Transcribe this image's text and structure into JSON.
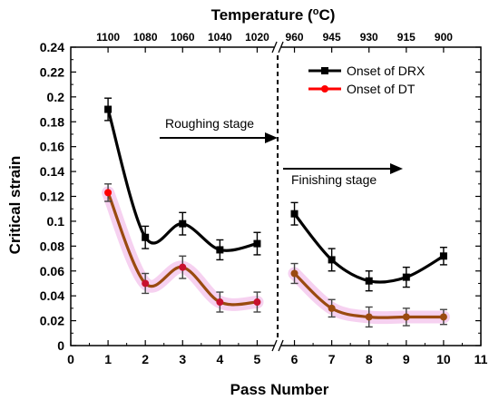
{
  "chart_data": {
    "type": "scatter",
    "xlabel": "Pass Number",
    "ylabel": "Critical strain",
    "top_axis_label": "Temperature (",
    "top_axis_label_sup": "o",
    "top_axis_label_unit": "C)",
    "xlim": [
      0,
      11
    ],
    "ylim": [
      0,
      0.24
    ],
    "x_ticks": [
      "0",
      "1",
      "2",
      "3",
      "4",
      "5",
      "6",
      "7",
      "8",
      "9",
      "10",
      "11"
    ],
    "y_ticks": [
      "0",
      "0.02",
      "0.04",
      "0.06",
      "0.08",
      "0.1",
      "0.12",
      "0.14",
      "0.16",
      "0.18",
      "0.2",
      "0.22",
      "0.24"
    ],
    "top_ticks": [
      {
        "x": 1,
        "label": "1100"
      },
      {
        "x": 2,
        "label": "1080"
      },
      {
        "x": 3,
        "label": "1060"
      },
      {
        "x": 4,
        "label": "1040"
      },
      {
        "x": 5,
        "label": "1020"
      },
      {
        "x": 6,
        "label": "960"
      },
      {
        "x": 7,
        "label": "945"
      },
      {
        "x": 8,
        "label": "930"
      },
      {
        "x": 9,
        "label": "915"
      },
      {
        "x": 10,
        "label": "900"
      }
    ],
    "series": [
      {
        "name": "Onset of DRX",
        "color": "#000000",
        "marker": "square",
        "x": [
          1,
          2,
          3,
          4,
          5,
          6,
          7,
          8,
          9,
          10
        ],
        "y": [
          0.19,
          0.087,
          0.098,
          0.077,
          0.082,
          0.106,
          0.069,
          0.052,
          0.055,
          0.072
        ],
        "err": [
          0.009,
          0.009,
          0.009,
          0.008,
          0.009,
          0.009,
          0.009,
          0.008,
          0.008,
          0.007
        ]
      },
      {
        "name": "Onset of DT",
        "color": "#ff0000",
        "marker": "circle",
        "x": [
          1,
          2,
          3,
          4,
          5,
          6,
          7,
          8,
          9,
          10
        ],
        "y": [
          0.123,
          0.05,
          0.063,
          0.035,
          0.035,
          0.058,
          0.03,
          0.023,
          0.023,
          0.023
        ],
        "err": [
          0.007,
          0.008,
          0.009,
          0.008,
          0.008,
          0.008,
          0.007,
          0.008,
          0.007,
          0.006
        ]
      }
    ],
    "annotations": [
      {
        "text": "Roughing stage"
      },
      {
        "text": "Finishing stage"
      }
    ],
    "legend_position": "top-right",
    "grid": false
  }
}
